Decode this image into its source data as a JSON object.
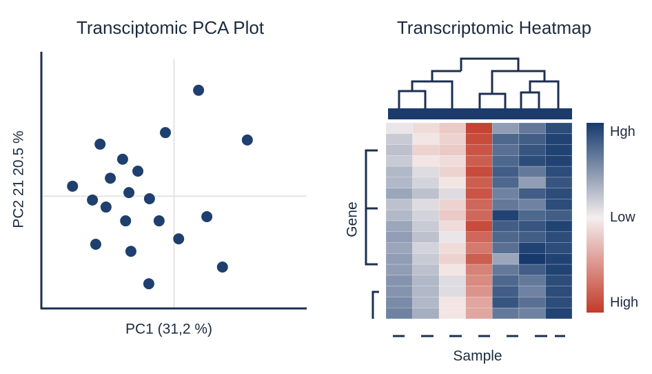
{
  "chart_data": [
    {
      "type": "scatter",
      "title": "Transciptomic PCA Plot",
      "x_label": "PC1 (31,2 %)",
      "y_label": "PC2 21 20.5 %",
      "color": "#1f3f6e",
      "x": [
        0.74,
        -0.26,
        2.21,
        -2.23,
        -1.55,
        -1.09,
        -1.92,
        -3.06,
        -1.36,
        -2.46,
        -0.74,
        -2.05,
        0.99,
        -1.46,
        -0.45,
        0.14,
        -2.36,
        -1.3,
        1.46,
        -0.76
      ],
      "y": [
        3.3,
        1.98,
        1.75,
        1.62,
        1.15,
        0.78,
        0.56,
        0.31,
        0.11,
        -0.12,
        -0.08,
        -0.34,
        -0.64,
        -0.77,
        -0.77,
        -1.33,
        -1.5,
        -1.72,
        -2.21,
        -2.73
      ],
      "xlim": [
        -4,
        4
      ],
      "ylim": [
        -3.5,
        4.5
      ]
    },
    {
      "type": "heatmap",
      "title": "Transcriptomic Heatmap",
      "x_label": "Sample",
      "y_label": "Gene",
      "colors": [
        "#c23a28",
        "#f4eeee",
        "#163a6d"
      ],
      "clim": [
        -2,
        2
      ],
      "cticks": [
        {
          "value": 1.8,
          "label": "Hgh"
        },
        {
          "value": 0,
          "label": "Low"
        },
        {
          "value": -1.8,
          "label": "High"
        }
      ],
      "z": [
        [
          0.1,
          -0.2,
          -0.4,
          -1.9,
          0.9,
          1.3,
          1.8
        ],
        [
          0.4,
          -0.1,
          -0.3,
          -1.8,
          1.5,
          1.6,
          1.9
        ],
        [
          0.5,
          -0.3,
          -0.4,
          -1.7,
          1.4,
          1.7,
          1.9
        ],
        [
          0.4,
          -0.1,
          -0.2,
          -1.6,
          1.5,
          1.8,
          1.9
        ],
        [
          0.6,
          0.2,
          -0.3,
          -1.8,
          1.6,
          1.3,
          1.8
        ],
        [
          0.6,
          0.3,
          -0.1,
          -1.6,
          1.5,
          0.9,
          1.7
        ],
        [
          0.8,
          0.5,
          0.2,
          -1.7,
          1.2,
          1.6,
          1.8
        ],
        [
          0.5,
          0.2,
          -0.3,
          -1.5,
          1.3,
          1.2,
          1.8
        ],
        [
          0.6,
          0.3,
          -0.4,
          -1.5,
          1.9,
          1.5,
          1.6
        ],
        [
          0.8,
          0.4,
          -0.2,
          -1.8,
          1.6,
          1.7,
          1.9
        ],
        [
          0.9,
          0.5,
          0.1,
          -1.5,
          1.5,
          1.6,
          1.8
        ],
        [
          0.8,
          0.3,
          -0.2,
          -1.3,
          1.4,
          1.9,
          1.8
        ],
        [
          0.9,
          0.4,
          -0.3,
          -1.6,
          0.8,
          2.0,
          1.9
        ],
        [
          0.9,
          0.5,
          -0.1,
          -1.2,
          1.3,
          1.6,
          1.9
        ],
        [
          1.0,
          0.6,
          0.2,
          -1.1,
          1.5,
          1.3,
          1.8
        ],
        [
          1.0,
          0.6,
          0.2,
          -1.0,
          1.6,
          1.2,
          1.8
        ],
        [
          1.1,
          0.6,
          -0.1,
          -0.8,
          1.7,
          1.4,
          1.8
        ],
        [
          1.2,
          0.7,
          -0.1,
          -0.8,
          1.3,
          1.2,
          1.9
        ]
      ]
    }
  ]
}
